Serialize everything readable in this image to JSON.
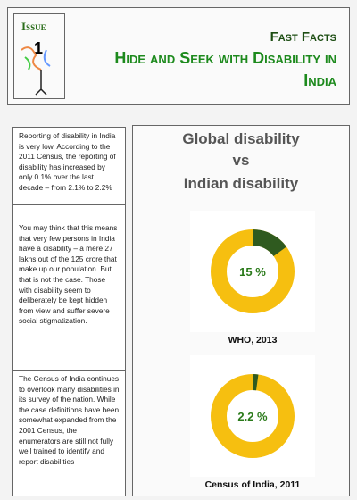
{
  "header": {
    "issue_label": "Issue",
    "issue_number": "1",
    "kicker": "Fast Facts",
    "title": "Hide and Seek with Disability in India"
  },
  "sidebar": {
    "paragraphs": [
      "Reporting of disability in India is very low. According to the 2011 Census, the reporting of disability has increased by only 0.1% over the last decade – from 2.1% to 2.2%",
      "You may think that this means that very few persons in India have a disability – a mere 27 lakhs out of the 125 crore that make up our population. But that is not the case. Those with disability seem to deliberately be kept hidden from view and suffer severe social stigmatization.",
      "The Census of India continues to overlook many disabilities in its survey of the nation. While the case definitions have been somewhat expanded from the 2001 Census, the enumerators are still not fully well trained to identify and report disabilities"
    ]
  },
  "comparison": {
    "title_lines": [
      "Global disability",
      "vs",
      "Indian disability"
    ],
    "charts": [
      {
        "type": "pie",
        "values": [
          15
        ],
        "value_labels": [
          "15 %"
        ],
        "caption": "WHO, 2013",
        "color": "#2f5a1f",
        "track_color": "#f6bf10"
      },
      {
        "type": "pie",
        "values": [
          2.2
        ],
        "value_labels": [
          "2.2 %"
        ],
        "caption": "Census of India, 2011",
        "color": "#2f5a1f",
        "track_color": "#f6bf10"
      }
    ]
  }
}
